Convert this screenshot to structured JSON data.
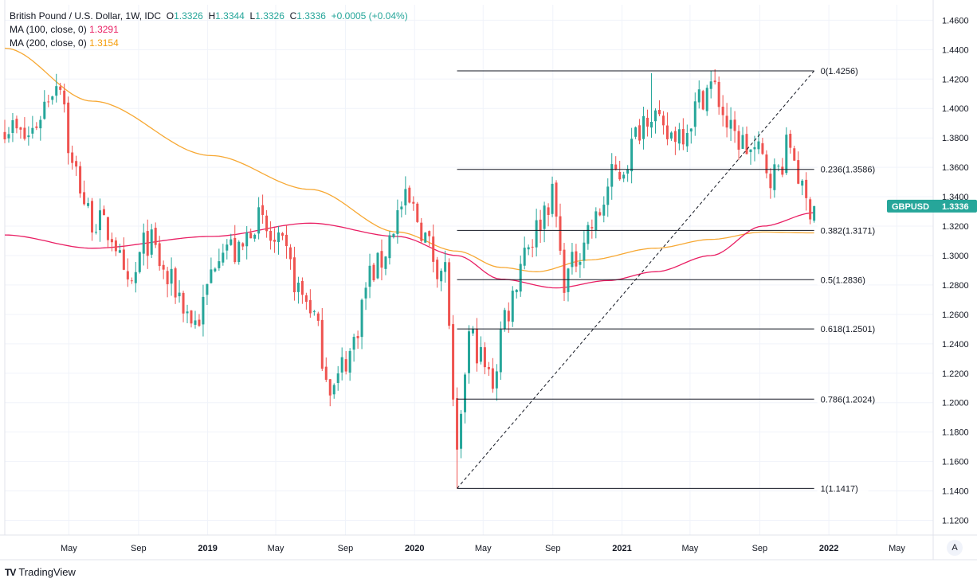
{
  "legend": {
    "symbol_title": "British Pound / U.S. Dollar, 1W, IDC",
    "o_label": "O",
    "o_value": "1.3326",
    "h_label": "H",
    "h_value": "1.3344",
    "l_label": "L",
    "l_value": "1.3326",
    "c_label": "C",
    "c_value": "1.3336",
    "change": "+0.0005 (+0.04%)",
    "ma100_label": "MA (100, close, 0)",
    "ma100_value": "1.3291",
    "ma200_label": "MA (200, close, 0)",
    "ma200_value": "1.3154"
  },
  "price_badge": {
    "symbol": "GBPUSD",
    "price": "1.3336"
  },
  "brand": {
    "logo": "TV",
    "name": "TradingView"
  },
  "auto_button": "A",
  "colors": {
    "up": "#26a69a",
    "down": "#ef5350",
    "ma100": "#e91e63",
    "ma200": "#f7a833",
    "fib": "#131722",
    "grid": "#f0f3fa",
    "badge": "#26a69a"
  },
  "chart_data": {
    "type": "candlestick",
    "y_axis": {
      "ticks": [
        "1.4600",
        "1.4400",
        "1.4200",
        "1.4000",
        "1.3800",
        "1.3600",
        "1.3400",
        "1.3200",
        "1.3000",
        "1.2800",
        "1.2600",
        "1.2400",
        "1.2200",
        "1.2000",
        "1.1800",
        "1.1600",
        "1.1400",
        "1.1200"
      ],
      "range": [
        1.11,
        1.4705
      ]
    },
    "x_axis": {
      "ticks": [
        "May",
        "Sep",
        "2019",
        "May",
        "Sep",
        "2020",
        "May",
        "Sep",
        "2021",
        "May",
        "Sep",
        "2022",
        "May"
      ],
      "bold": [
        false,
        false,
        true,
        false,
        false,
        true,
        false,
        false,
        true,
        false,
        false,
        true,
        false
      ]
    },
    "fib_levels": [
      {
        "label": "0(1.4256)",
        "value": 1.4256
      },
      {
        "label": "0.236(1.3586)",
        "value": 1.3586
      },
      {
        "label": "0.382(1.3171)",
        "value": 1.3171
      },
      {
        "label": "0.5(1.2836)",
        "value": 1.2836
      },
      {
        "label": "0.618(1.2501)",
        "value": 1.2501
      },
      {
        "label": "0.786(1.2024)",
        "value": 1.2024
      },
      {
        "label": "1(1.1417)",
        "value": 1.1417
      }
    ],
    "fib_start": "2020-03-16",
    "fib_end": "2021-12-06",
    "trendline": {
      "from": {
        "date": "2020-03-16",
        "value": 1.1417
      },
      "to": {
        "date": "2021-12-06",
        "value": 1.4256
      }
    },
    "close_anchors": [
      {
        "date": "2018-01-08",
        "value": 1.39
      },
      {
        "date": "2018-02-12",
        "value": 1.38
      },
      {
        "date": "2018-04-16",
        "value": 1.42
      },
      {
        "date": "2018-05-07",
        "value": 1.36
      },
      {
        "date": "2018-06-11",
        "value": 1.325
      },
      {
        "date": "2018-07-16",
        "value": 1.315
      },
      {
        "date": "2018-08-13",
        "value": 1.275
      },
      {
        "date": "2018-09-17",
        "value": 1.31
      },
      {
        "date": "2018-10-29",
        "value": 1.28
      },
      {
        "date": "2018-12-10",
        "value": 1.255
      },
      {
        "date": "2019-01-28",
        "value": 1.31
      },
      {
        "date": "2019-02-25",
        "value": 1.3
      },
      {
        "date": "2019-03-25",
        "value": 1.325
      },
      {
        "date": "2019-05-06",
        "value": 1.305
      },
      {
        "date": "2019-06-24",
        "value": 1.27
      },
      {
        "date": "2019-08-12",
        "value": 1.21
      },
      {
        "date": "2019-09-02",
        "value": 1.23
      },
      {
        "date": "2019-10-21",
        "value": 1.29
      },
      {
        "date": "2019-12-16",
        "value": 1.335
      },
      {
        "date": "2020-02-24",
        "value": 1.29
      },
      {
        "date": "2020-03-16",
        "value": 1.16
      },
      {
        "date": "2020-04-06",
        "value": 1.245
      },
      {
        "date": "2020-05-18",
        "value": 1.215
      },
      {
        "date": "2020-06-08",
        "value": 1.26
      },
      {
        "date": "2020-07-20",
        "value": 1.31
      },
      {
        "date": "2020-08-31",
        "value": 1.34
      },
      {
        "date": "2020-09-21",
        "value": 1.285
      },
      {
        "date": "2020-11-09",
        "value": 1.32
      },
      {
        "date": "2020-12-21",
        "value": 1.355
      },
      {
        "date": "2021-02-22",
        "value": 1.4
      },
      {
        "date": "2021-03-15",
        "value": 1.38
      },
      {
        "date": "2021-04-12",
        "value": 1.385
      },
      {
        "date": "2021-06-07",
        "value": 1.415
      },
      {
        "date": "2021-07-19",
        "value": 1.38
      },
      {
        "date": "2021-08-23",
        "value": 1.37
      },
      {
        "date": "2021-09-27",
        "value": 1.355
      },
      {
        "date": "2021-10-25",
        "value": 1.375
      },
      {
        "date": "2021-11-22",
        "value": 1.335
      },
      {
        "date": "2021-12-06",
        "value": 1.3336
      }
    ],
    "ma100_anchors": [
      {
        "date": "2018-01-08",
        "value": 1.314
      },
      {
        "date": "2018-06-11",
        "value": 1.305
      },
      {
        "date": "2019-01-07",
        "value": 1.313
      },
      {
        "date": "2019-07-01",
        "value": 1.322
      },
      {
        "date": "2019-12-02",
        "value": 1.313
      },
      {
        "date": "2020-03-16",
        "value": 1.3
      },
      {
        "date": "2020-06-01",
        "value": 1.284
      },
      {
        "date": "2020-09-07",
        "value": 1.278
      },
      {
        "date": "2020-12-07",
        "value": 1.283
      },
      {
        "date": "2021-03-01",
        "value": 1.289
      },
      {
        "date": "2021-06-07",
        "value": 1.3
      },
      {
        "date": "2021-09-06",
        "value": 1.32
      },
      {
        "date": "2021-12-06",
        "value": 1.3291
      }
    ],
    "ma200_anchors": [
      {
        "date": "2018-01-08",
        "value": 1.441
      },
      {
        "date": "2018-06-11",
        "value": 1.405
      },
      {
        "date": "2019-01-07",
        "value": 1.368
      },
      {
        "date": "2019-07-01",
        "value": 1.345
      },
      {
        "date": "2019-12-02",
        "value": 1.316
      },
      {
        "date": "2020-03-16",
        "value": 1.303
      },
      {
        "date": "2020-06-01",
        "value": 1.292
      },
      {
        "date": "2020-08-03",
        "value": 1.289
      },
      {
        "date": "2020-11-02",
        "value": 1.297
      },
      {
        "date": "2021-03-01",
        "value": 1.305
      },
      {
        "date": "2021-06-07",
        "value": 1.311
      },
      {
        "date": "2021-09-06",
        "value": 1.316
      },
      {
        "date": "2021-12-06",
        "value": 1.3154
      }
    ]
  }
}
